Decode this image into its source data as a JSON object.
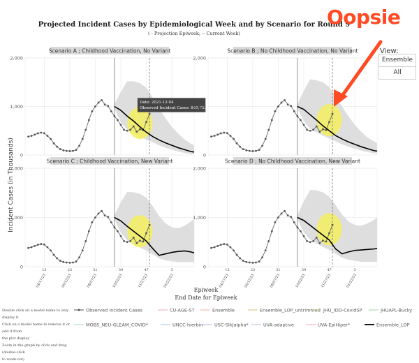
{
  "title": "Projected Incident Cases by Epidemiological Week and by Scenario for Round 9",
  "subtitle": "( - Projection Epiweek; -- Current Week)",
  "annotation": "Oopsie",
  "view": {
    "label": "View:",
    "options": [
      "Ensemble",
      "All"
    ]
  },
  "hint_lines": [
    "Double click on a model name to only display it.",
    "Click on a model name to remove it or add it from",
    "the plot display",
    "Zoom in the graph by click and drag (double-click",
    "to zoom-out)"
  ],
  "tooltip": {
    "date": "Date: 2021-12-04",
    "value": "Observed Incident Cases:   849,785"
  },
  "legend": [
    {
      "label": "Observed Incident Cases",
      "color": "#555555"
    },
    {
      "label": "CU-AGE-ST",
      "color": "#f4a6b8"
    },
    {
      "label": "Ensemble",
      "color": "#f3b39a"
    },
    {
      "label": "Ensemble_LOP_untrimmed",
      "color": "#d7c27a"
    },
    {
      "label": "JHU_IDD-CovidSP",
      "color": "#c8d68a"
    },
    {
      "label": "JHUAPL-Bucky",
      "color": "#9fd6a3"
    },
    {
      "label": "MOBS_NEU-GLEAM_COVID*",
      "color": "#a8d8b6"
    },
    {
      "label": "UNCC-hierbin",
      "color": "#9cc9e8"
    },
    {
      "label": "USC-SIkJalpha*",
      "color": "#b4b5ea"
    },
    {
      "label": "UVA-adaptive",
      "color": "#d4a8e2"
    },
    {
      "label": "UVA-EpiHiper*",
      "color": "#f0a2c8"
    },
    {
      "label": "Ensemble_LOP",
      "color": "#000000"
    }
  ],
  "colors": {
    "highlight": "#f4ef5f",
    "band": "#dedede",
    "arrow": "#ff4a23",
    "strip": "#d9d9d9"
  },
  "chart_data": {
    "type": "line",
    "xlabel": "Epiweek",
    "xlabel2": "End Date for Epiweek",
    "ylabel": "Incident Cases (in Thousands)",
    "ylim": [
      0,
      2000
    ],
    "yticks": [
      0,
      1000,
      2000
    ],
    "ytick_labels": [
      "0",
      "1,000",
      "2,000"
    ],
    "xrange": [
      9,
      62
    ],
    "xticks": [
      {
        "week": 15,
        "label": "15",
        "date": "04/17/21"
      },
      {
        "week": 23,
        "label": "23",
        "date": "06/12/21"
      },
      {
        "week": 31,
        "label": "31",
        "date": "08/07/21"
      },
      {
        "week": 39,
        "label": "39",
        "date": "10/02/21"
      },
      {
        "week": 47,
        "label": "47",
        "date": "11/27/21"
      },
      {
        "week": 55,
        "label": "3",
        "date": "01/22/22"
      }
    ],
    "projection_start_week": 37,
    "current_week": 48,
    "observed": {
      "name": "Observed Incident Cases",
      "x": [
        10,
        11,
        12,
        13,
        14,
        15,
        16,
        17,
        18,
        19,
        20,
        21,
        22,
        23,
        24,
        25,
        26,
        27,
        28,
        29,
        30,
        31,
        32,
        33,
        34,
        35,
        36,
        37,
        38,
        39,
        40,
        41,
        42,
        43,
        44,
        45,
        46,
        47,
        48
      ],
      "y": [
        380,
        395,
        420,
        445,
        460,
        450,
        395,
        330,
        240,
        170,
        120,
        95,
        85,
        80,
        85,
        105,
        190,
        330,
        520,
        720,
        900,
        1000,
        1080,
        1130,
        1040,
        1010,
        900,
        800,
        720,
        620,
        520,
        500,
        520,
        590,
        480,
        530,
        510,
        680,
        850
      ]
    },
    "panels": [
      {
        "strip": "Scenario A ; Childhood Vaccination, No Variant",
        "ensemble_lop": {
          "x": [
            37,
            39,
            41,
            43,
            45,
            47,
            49,
            51,
            53,
            55,
            57,
            59,
            61,
            62
          ],
          "y": [
            1000,
            920,
            800,
            700,
            580,
            470,
            380,
            310,
            250,
            200,
            150,
            110,
            70,
            60
          ]
        },
        "band": {
          "upper": [
            1050,
            1300,
            1520,
            1520,
            1480,
            1390,
            1180,
            960,
            760,
            580,
            440,
            320,
            230,
            200
          ],
          "lower": [
            960,
            680,
            520,
            450,
            380,
            320,
            260,
            200,
            150,
            110,
            70,
            40,
            20,
            15
          ]
        },
        "highlight": {
          "x": 45,
          "y": 660
        }
      },
      {
        "strip": "Scenario B ; No Childhood Vaccination, No Variant",
        "ensemble_lop": {
          "x": [
            37,
            39,
            41,
            43,
            45,
            47,
            49,
            51,
            53,
            55,
            57,
            59,
            61,
            62
          ],
          "y": [
            1000,
            940,
            830,
            720,
            600,
            500,
            400,
            330,
            270,
            220,
            170,
            130,
            90,
            80
          ]
        },
        "band": {
          "upper": [
            1050,
            1320,
            1560,
            1540,
            1500,
            1400,
            1200,
            1000,
            800,
            620,
            480,
            360,
            280,
            240
          ],
          "lower": [
            960,
            700,
            540,
            470,
            400,
            340,
            280,
            220,
            170,
            130,
            90,
            60,
            35,
            30
          ]
        },
        "highlight": {
          "x": 47,
          "y": 720
        }
      },
      {
        "strip": "Scenario C ; Childhood Vaccination, New Variant",
        "ensemble_lop": {
          "x": [
            37,
            39,
            41,
            43,
            45,
            47,
            49,
            51,
            53,
            55,
            57,
            59,
            61,
            62
          ],
          "y": [
            1000,
            930,
            820,
            720,
            620,
            520,
            370,
            230,
            260,
            290,
            310,
            320,
            300,
            280
          ]
        },
        "band": {
          "upper": [
            1050,
            1310,
            1520,
            1510,
            1480,
            1400,
            1230,
            1030,
            880,
            800,
            780,
            830,
            920,
            960
          ],
          "lower": [
            960,
            690,
            530,
            460,
            390,
            330,
            250,
            170,
            130,
            110,
            90,
            90,
            90,
            90
          ]
        },
        "highlight": {
          "x": 45,
          "y": 720
        }
      },
      {
        "strip": "Scenario D ; No Childhood Vaccination, New Variant",
        "ensemble_lop": {
          "x": [
            37,
            39,
            41,
            43,
            45,
            47,
            49,
            51,
            53,
            55,
            57,
            59,
            61,
            62
          ],
          "y": [
            1000,
            940,
            840,
            740,
            640,
            540,
            360,
            260,
            300,
            330,
            340,
            350,
            360,
            370
          ]
        },
        "band": {
          "upper": [
            1050,
            1330,
            1560,
            1550,
            1510,
            1420,
            1250,
            1060,
            920,
            850,
            830,
            880,
            950,
            1000
          ],
          "lower": [
            960,
            700,
            550,
            470,
            400,
            340,
            260,
            180,
            140,
            120,
            100,
            100,
            100,
            100
          ]
        },
        "highlight": {
          "x": 47,
          "y": 760
        }
      }
    ]
  }
}
